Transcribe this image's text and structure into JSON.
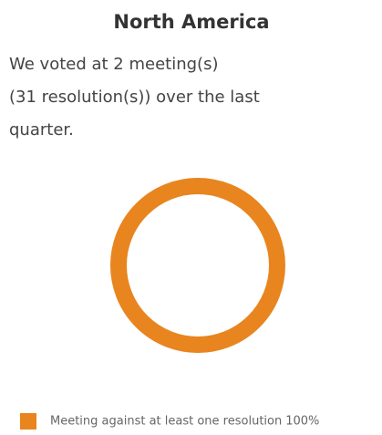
{
  "chart_data": {
    "type": "pie",
    "donut": true,
    "title": "North America",
    "subtitle": [
      "We voted at 2 meeting(s)",
      "(31 resolution(s)) over the last",
      "quarter."
    ],
    "categories": [
      "Meeting against at least one resolution"
    ],
    "values": [
      100
    ],
    "value_labels": [
      "100%"
    ],
    "colors": [
      "#e8851f"
    ],
    "legend": "bottom"
  }
}
